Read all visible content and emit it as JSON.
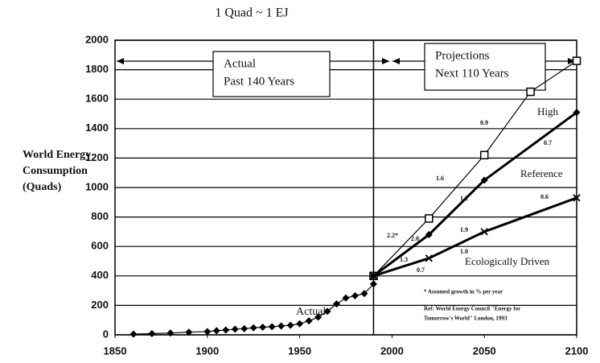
{
  "chart_data": {
    "type": "line",
    "title": "1 Quad ~ 1 EJ",
    "ylabel": [
      "World Energy",
      "Consumption",
      "(Quads)"
    ],
    "xlim": [
      1850,
      2100
    ],
    "xticks": [
      1850,
      1900,
      1950,
      2000,
      2050,
      2100
    ],
    "ylim": [
      0,
      2000
    ],
    "yticks": [
      0,
      200,
      400,
      600,
      800,
      1000,
      1200,
      1400,
      1600,
      1800,
      2000
    ],
    "grid": true,
    "divider_x": 1990,
    "boxes": [
      [
        "Actual",
        "Past 140 Years"
      ],
      [
        "Projections",
        "Next 110 Years"
      ]
    ],
    "series": [
      {
        "name": "Actual",
        "color": "#000000",
        "marker": "diamond",
        "width": 1.2,
        "x": [
          1860,
          1870,
          1880,
          1890,
          1900,
          1905,
          1910,
          1915,
          1920,
          1925,
          1930,
          1935,
          1940,
          1945,
          1950,
          1955,
          1960,
          1965,
          1970,
          1975,
          1980,
          1985,
          1990
        ],
        "values": [
          5,
          8,
          12,
          18,
          22,
          28,
          33,
          38,
          42,
          48,
          52,
          55,
          60,
          65,
          75,
          95,
          120,
          160,
          210,
          250,
          265,
          280,
          345
        ]
      },
      {
        "name": "High",
        "color": "#000000",
        "marker": "square",
        "width": 1.2,
        "x": [
          1990,
          2020,
          2050,
          2075,
          2100
        ],
        "values": [
          400,
          790,
          1220,
          1650,
          1860
        ]
      },
      {
        "name": "Reference",
        "color": "#000000",
        "marker": "diamond",
        "width": 3,
        "x": [
          1990,
          2020,
          2050,
          2100
        ],
        "values": [
          400,
          680,
          1050,
          1510
        ]
      },
      {
        "name": "Ecologically Driven",
        "color": "#000000",
        "marker": "cross",
        "width": 3,
        "x": [
          1990,
          2020,
          2050,
          2100
        ],
        "values": [
          400,
          520,
          700,
          930
        ]
      }
    ],
    "annotations": [
      "2.2*",
      "1.6",
      "0.9",
      "2.0",
      "1.2",
      "1.9",
      "1.3",
      "1.0",
      "0.7",
      "0.7",
      "0.6"
    ],
    "notes": [
      "* Assumed growth in % per year",
      "Ref: World Energy Council \"Energy for",
      "Tomorrow's World\" London, 1993"
    ]
  }
}
